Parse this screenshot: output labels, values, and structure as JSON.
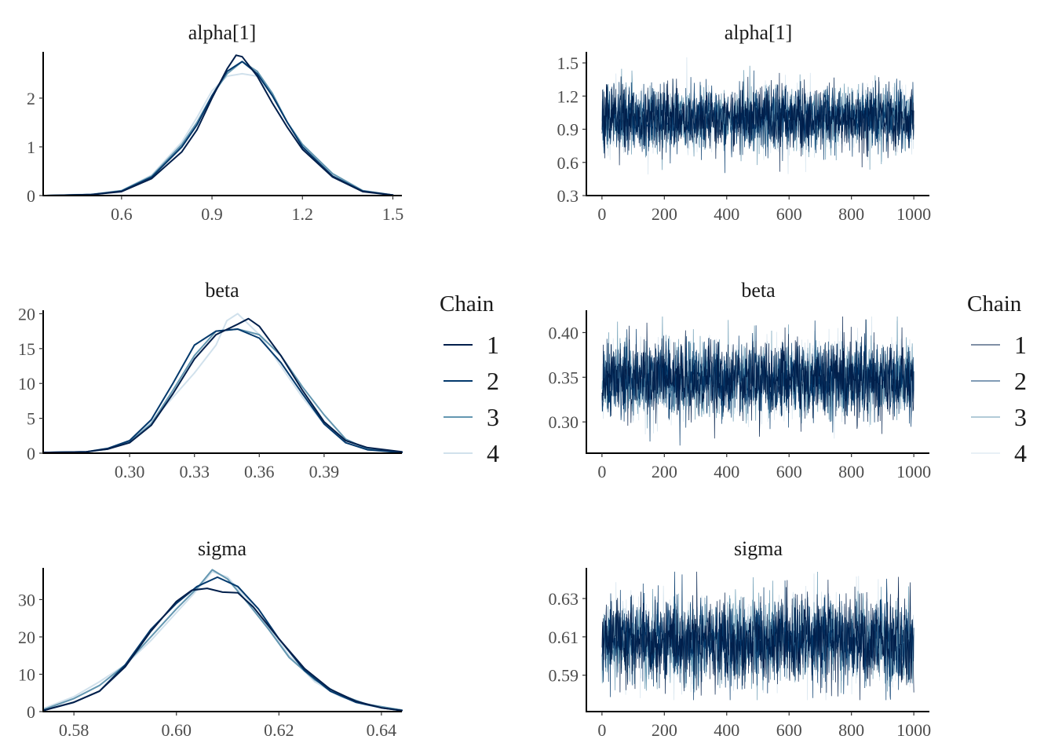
{
  "legend": {
    "title": "Chain",
    "entries": [
      {
        "label": "1",
        "color": "#011f4b"
      },
      {
        "label": "2",
        "color": "#03396c"
      },
      {
        "label": "3",
        "color": "#6497b1"
      },
      {
        "label": "4",
        "color": "#d1e1ec"
      }
    ]
  },
  "chart_data": [
    {
      "type": "line",
      "kind": "density",
      "title": "alpha[1]",
      "xlim": [
        0.34,
        1.53
      ],
      "ylim": [
        0,
        2.95
      ],
      "xticks": [
        0.6,
        0.9,
        1.2,
        1.5
      ],
      "xtick_labels": [
        "0.6",
        "0.9",
        "1.2",
        "1.5"
      ],
      "yticks": [
        0,
        1,
        2
      ],
      "ytick_labels": [
        "0",
        "1",
        "2"
      ],
      "series": [
        {
          "name": "1",
          "color": "#011f4b",
          "x": [
            0.35,
            0.5,
            0.6,
            0.7,
            0.8,
            0.85,
            0.9,
            0.95,
            0.98,
            1.0,
            1.05,
            1.1,
            1.15,
            1.2,
            1.3,
            1.4,
            1.5
          ],
          "y": [
            0.0,
            0.02,
            0.08,
            0.35,
            0.9,
            1.35,
            2.0,
            2.6,
            2.88,
            2.85,
            2.45,
            1.9,
            1.4,
            0.95,
            0.38,
            0.08,
            0.01
          ]
        },
        {
          "name": "2",
          "color": "#03396c",
          "x": [
            0.35,
            0.5,
            0.6,
            0.7,
            0.8,
            0.85,
            0.9,
            0.95,
            1.0,
            1.05,
            1.1,
            1.15,
            1.2,
            1.3,
            1.4,
            1.5
          ],
          "y": [
            0.0,
            0.02,
            0.09,
            0.38,
            1.0,
            1.45,
            2.05,
            2.55,
            2.75,
            2.5,
            2.05,
            1.5,
            1.0,
            0.4,
            0.09,
            0.01
          ]
        },
        {
          "name": "3",
          "color": "#6497b1",
          "x": [
            0.35,
            0.5,
            0.6,
            0.7,
            0.8,
            0.85,
            0.9,
            0.95,
            1.0,
            1.05,
            1.1,
            1.15,
            1.2,
            1.3,
            1.4,
            1.5
          ],
          "y": [
            0.0,
            0.02,
            0.1,
            0.4,
            1.05,
            1.5,
            2.05,
            2.5,
            2.75,
            2.55,
            2.1,
            1.5,
            1.05,
            0.45,
            0.1,
            0.01
          ]
        },
        {
          "name": "4",
          "color": "#d1e1ec",
          "x": [
            0.35,
            0.5,
            0.6,
            0.7,
            0.8,
            0.85,
            0.9,
            0.95,
            1.0,
            1.05,
            1.1,
            1.15,
            1.2,
            1.3,
            1.4,
            1.5
          ],
          "y": [
            0.0,
            0.03,
            0.1,
            0.42,
            1.1,
            1.6,
            2.15,
            2.45,
            2.5,
            2.45,
            2.05,
            1.5,
            1.05,
            0.45,
            0.1,
            0.01
          ]
        }
      ]
    },
    {
      "type": "line",
      "kind": "trace",
      "title": "alpha[1]",
      "xlim": [
        -50,
        1050
      ],
      "ylim": [
        0.3,
        1.6
      ],
      "xticks": [
        0,
        200,
        400,
        600,
        800,
        1000
      ],
      "xtick_labels": [
        "0",
        "200",
        "400",
        "600",
        "800",
        "1000"
      ],
      "yticks": [
        0.3,
        0.6,
        0.9,
        1.2,
        1.5
      ],
      "ytick_labels": [
        "0.3",
        "0.6",
        "0.9",
        "1.2",
        "1.5"
      ],
      "iterations": [
        0,
        1000
      ],
      "mean": 1.0,
      "sd": 0.145,
      "range": [
        0.35,
        1.55
      ],
      "series_names": [
        "1",
        "2",
        "3",
        "4"
      ]
    },
    {
      "type": "line",
      "kind": "density",
      "title": "beta",
      "xlim": [
        0.26,
        0.426
      ],
      "ylim": [
        0,
        20.5
      ],
      "xticks": [
        0.3,
        0.33,
        0.36,
        0.39
      ],
      "xtick_labels": [
        "0.30",
        "0.33",
        "0.36",
        "0.39"
      ],
      "yticks": [
        0,
        5,
        10,
        15,
        20
      ],
      "ytick_labels": [
        "0",
        "5",
        "10",
        "15",
        "20"
      ],
      "series": [
        {
          "name": "1",
          "color": "#011f4b",
          "x": [
            0.26,
            0.28,
            0.29,
            0.3,
            0.31,
            0.32,
            0.33,
            0.34,
            0.35,
            0.355,
            0.36,
            0.37,
            0.38,
            0.39,
            0.4,
            0.41,
            0.426
          ],
          "y": [
            0.1,
            0.2,
            0.6,
            1.5,
            4.0,
            8.5,
            13.5,
            17.0,
            18.5,
            19.3,
            18.2,
            14.0,
            9.0,
            4.5,
            1.8,
            0.8,
            0.2
          ]
        },
        {
          "name": "2",
          "color": "#03396c",
          "x": [
            0.26,
            0.28,
            0.29,
            0.3,
            0.31,
            0.32,
            0.33,
            0.34,
            0.35,
            0.36,
            0.37,
            0.38,
            0.39,
            0.4,
            0.41,
            0.426
          ],
          "y": [
            0.1,
            0.2,
            0.7,
            1.8,
            4.8,
            10.0,
            15.5,
            17.5,
            17.8,
            16.5,
            13.0,
            8.5,
            4.2,
            1.5,
            0.5,
            0.1
          ]
        },
        {
          "name": "3",
          "color": "#6497b1",
          "x": [
            0.26,
            0.28,
            0.29,
            0.3,
            0.31,
            0.32,
            0.33,
            0.34,
            0.35,
            0.36,
            0.37,
            0.38,
            0.39,
            0.4,
            0.41,
            0.426
          ],
          "y": [
            0.1,
            0.2,
            0.6,
            1.6,
            4.2,
            9.0,
            14.0,
            17.5,
            17.8,
            17.0,
            14.0,
            9.5,
            5.5,
            2.0,
            0.6,
            0.1
          ]
        },
        {
          "name": "4",
          "color": "#d1e1ec",
          "x": [
            0.26,
            0.28,
            0.29,
            0.3,
            0.31,
            0.32,
            0.33,
            0.34,
            0.345,
            0.35,
            0.36,
            0.37,
            0.38,
            0.39,
            0.4,
            0.41,
            0.426
          ],
          "y": [
            0.1,
            0.2,
            0.6,
            1.6,
            4.5,
            8.0,
            11.5,
            15.5,
            19.0,
            20.0,
            17.0,
            12.5,
            8.0,
            4.2,
            1.8,
            0.5,
            0.1
          ]
        }
      ]
    },
    {
      "type": "line",
      "kind": "trace",
      "title": "beta",
      "xlim": [
        -50,
        1050
      ],
      "ylim": [
        0.265,
        0.425
      ],
      "xticks": [
        0,
        200,
        400,
        600,
        800,
        1000
      ],
      "xtick_labels": [
        "0",
        "200",
        "400",
        "600",
        "800",
        "1000"
      ],
      "yticks": [
        0.3,
        0.35,
        0.4
      ],
      "ytick_labels": [
        "0.30",
        "0.35",
        "0.40"
      ],
      "iterations": [
        0,
        1000
      ],
      "mean": 0.348,
      "sd": 0.021,
      "range": [
        0.272,
        0.418
      ],
      "series_names": [
        "1",
        "2",
        "3",
        "4"
      ]
    },
    {
      "type": "line",
      "kind": "density",
      "title": "sigma",
      "xlim": [
        0.574,
        0.644
      ],
      "ylim": [
        0,
        38.5
      ],
      "xticks": [
        0.58,
        0.6,
        0.62,
        0.64
      ],
      "xtick_labels": [
        "0.58",
        "0.60",
        "0.62",
        "0.64"
      ],
      "yticks": [
        0,
        10,
        20,
        30
      ],
      "ytick_labels": [
        "0",
        "10",
        "20",
        "30"
      ],
      "series": [
        {
          "name": "1",
          "color": "#011f4b",
          "x": [
            0.574,
            0.58,
            0.585,
            0.59,
            0.595,
            0.6,
            0.603,
            0.606,
            0.609,
            0.612,
            0.615,
            0.62,
            0.625,
            0.63,
            0.635,
            0.64,
            0.644
          ],
          "y": [
            0.3,
            2.5,
            5.5,
            12.0,
            21.5,
            29.5,
            32.5,
            33.0,
            32.0,
            31.8,
            28.0,
            19.5,
            11.5,
            6.0,
            2.8,
            1.0,
            0.3
          ]
        },
        {
          "name": "2",
          "color": "#03396c",
          "x": [
            0.574,
            0.58,
            0.585,
            0.59,
            0.595,
            0.6,
            0.604,
            0.608,
            0.612,
            0.616,
            0.62,
            0.625,
            0.63,
            0.635,
            0.64,
            0.644
          ],
          "y": [
            0.3,
            2.5,
            5.5,
            12.5,
            22.0,
            29.0,
            33.5,
            36.0,
            33.5,
            27.5,
            19.5,
            11.0,
            5.5,
            2.5,
            1.0,
            0.3
          ]
        },
        {
          "name": "3",
          "color": "#6497b1",
          "x": [
            0.574,
            0.58,
            0.585,
            0.59,
            0.595,
            0.6,
            0.604,
            0.607,
            0.61,
            0.614,
            0.618,
            0.622,
            0.627,
            0.632,
            0.637,
            0.644
          ],
          "y": [
            0.5,
            3.5,
            7.0,
            12.5,
            20.0,
            27.5,
            33.0,
            38.0,
            35.5,
            29.0,
            22.0,
            14.5,
            8.5,
            4.5,
            2.0,
            0.4
          ]
        },
        {
          "name": "4",
          "color": "#d1e1ec",
          "x": [
            0.574,
            0.58,
            0.585,
            0.59,
            0.595,
            0.6,
            0.604,
            0.607,
            0.61,
            0.614,
            0.618,
            0.622,
            0.627,
            0.632,
            0.637,
            0.644
          ],
          "y": [
            0.8,
            4.0,
            8.0,
            12.5,
            19.0,
            26.5,
            32.5,
            37.5,
            36.0,
            30.0,
            22.5,
            15.0,
            8.0,
            4.0,
            1.8,
            0.4
          ]
        }
      ]
    },
    {
      "type": "line",
      "kind": "trace",
      "title": "sigma",
      "xlim": [
        -50,
        1050
      ],
      "ylim": [
        0.571,
        0.646
      ],
      "xticks": [
        0,
        200,
        400,
        600,
        800,
        1000
      ],
      "xtick_labels": [
        "0",
        "200",
        "400",
        "600",
        "800",
        "1000"
      ],
      "yticks": [
        0.59,
        0.61,
        0.63
      ],
      "ytick_labels": [
        "0.59",
        "0.61",
        "0.63"
      ],
      "iterations": [
        0,
        1000
      ],
      "mean": 0.608,
      "sd": 0.011,
      "range": [
        0.577,
        0.644
      ],
      "series_names": [
        "1",
        "2",
        "3",
        "4"
      ]
    }
  ]
}
